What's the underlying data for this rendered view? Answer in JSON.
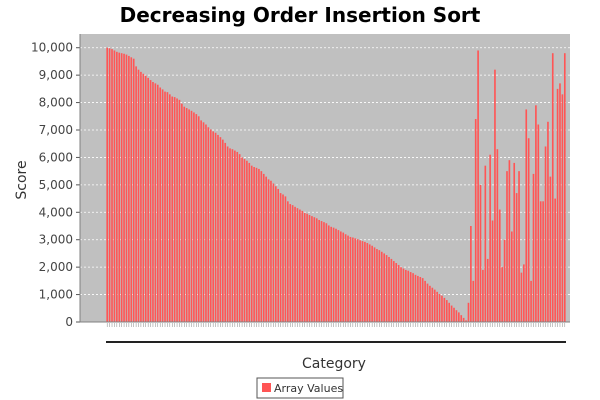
{
  "chart_data": {
    "type": "bar",
    "title": "Decreasing Order Insertion Sort",
    "xlabel": "Category",
    "ylabel": "Score",
    "ylim": [
      0,
      10500
    ],
    "yticks": [
      0,
      1000,
      2000,
      3000,
      4000,
      5000,
      6000,
      7000,
      8000,
      9000,
      10000
    ],
    "ytick_labels": [
      "0",
      "1,000",
      "2,000",
      "3,000",
      "4,000",
      "5,000",
      "6,000",
      "7,000",
      "8,000",
      "9,000",
      "10,000"
    ],
    "grid": true,
    "legend_position": "bottom",
    "series": [
      {
        "name": "Array Values",
        "color": "#ff5555",
        "values": [
          10000,
          9980,
          9950,
          9900,
          9850,
          9820,
          9800,
          9780,
          9750,
          9700,
          9650,
          9600,
          9320,
          9200,
          9120,
          9050,
          8980,
          8900,
          8820,
          8750,
          8700,
          8650,
          8550,
          8480,
          8400,
          8380,
          8300,
          8220,
          8200,
          8150,
          8100,
          7960,
          7850,
          7800,
          7750,
          7700,
          7640,
          7580,
          7500,
          7350,
          7280,
          7200,
          7100,
          7020,
          6950,
          6900,
          6820,
          6740,
          6650,
          6530,
          6400,
          6330,
          6300,
          6250,
          6200,
          6120,
          6000,
          5940,
          5880,
          5800,
          5700,
          5650,
          5620,
          5580,
          5500,
          5400,
          5300,
          5200,
          5150,
          5050,
          4950,
          4850,
          4700,
          4650,
          4580,
          4400,
          4300,
          4260,
          4200,
          4150,
          4100,
          4050,
          3980,
          3950,
          3900,
          3860,
          3820,
          3780,
          3720,
          3680,
          3640,
          3600,
          3520,
          3470,
          3440,
          3400,
          3350,
          3300,
          3260,
          3200,
          3150,
          3100,
          3080,
          3050,
          3020,
          2980,
          2950,
          2920,
          2880,
          2830,
          2780,
          2720,
          2660,
          2620,
          2560,
          2500,
          2440,
          2370,
          2300,
          2220,
          2150,
          2080,
          2000,
          1950,
          1900,
          1870,
          1820,
          1780,
          1720,
          1680,
          1640,
          1600,
          1500,
          1400,
          1320,
          1250,
          1180,
          1100,
          1020,
          960,
          880,
          800,
          700,
          600,
          520,
          430,
          350,
          250,
          150,
          60,
          700,
          3500,
          1500,
          7400,
          9900,
          5000,
          1900,
          5700,
          2300,
          6100,
          3700,
          9200,
          6300,
          4100,
          2000,
          3000,
          5500,
          5900,
          3300,
          5800,
          4700,
          5500,
          1800,
          2100,
          7750,
          6700,
          1500,
          5400,
          7900,
          7200,
          4400,
          4400,
          6400,
          7300,
          5300,
          9800,
          4500,
          8500,
          8700,
          8300,
          9800
        ]
      }
    ]
  }
}
